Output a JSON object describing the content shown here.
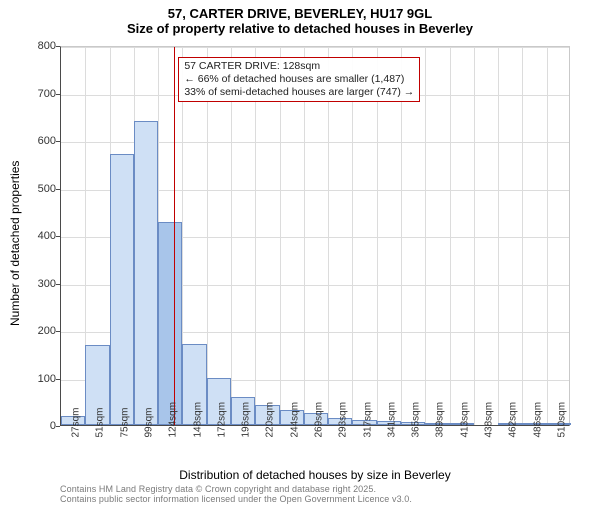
{
  "title": "57, CARTER DRIVE, BEVERLEY, HU17 9GL",
  "subtitle": "Size of property relative to detached houses in Beverley",
  "y_axis_label": "Number of detached properties",
  "x_axis_label": "Distribution of detached houses by size in Beverley",
  "footer_line1": "Contains HM Land Registry data © Crown copyright and database right 2025.",
  "footer_line2": "Contains public sector information licensed under the Open Government Licence v3.0.",
  "chart": {
    "type": "bar",
    "background_color": "#ffffff",
    "grid_color": "#dcdcdc",
    "axis_color": "#4a4a4a",
    "bar_fill": "#cfe0f5",
    "bar_fill_highlight": "#a8c5ea",
    "bar_border": "#6b8cc4",
    "ref_line_color": "#c00000",
    "ylim": [
      0,
      800
    ],
    "ytick_step": 100,
    "highlight_index": 4,
    "ref_value": 128,
    "callout": {
      "line1": "57 CARTER DRIVE: 128sqm",
      "line2": "← 66% of detached houses are smaller (1,487)",
      "line3": "33% of semi-detached houses are larger (747) →"
    },
    "categories": [
      "27sqm",
      "51sqm",
      "75sqm",
      "99sqm",
      "124sqm",
      "148sqm",
      "172sqm",
      "196sqm",
      "220sqm",
      "244sqm",
      "269sqm",
      "317sqm",
      "293sqm",
      "341sqm",
      "365sqm",
      "389sqm",
      "413sqm",
      "438sqm",
      "462sqm",
      "486sqm",
      "510sqm"
    ],
    "values": [
      20,
      168,
      570,
      640,
      427,
      170,
      100,
      58,
      42,
      32,
      25,
      15,
      10,
      9,
      7,
      5,
      4,
      0,
      3,
      2,
      2
    ],
    "category_order": [
      0,
      1,
      2,
      3,
      4,
      5,
      6,
      7,
      8,
      9,
      10,
      12,
      11,
      13,
      14,
      15,
      16,
      17,
      18,
      19,
      20
    ],
    "title_fontsize": 13,
    "label_fontsize": 12,
    "tick_fontsize": 11,
    "xtick_fontsize": 10
  }
}
